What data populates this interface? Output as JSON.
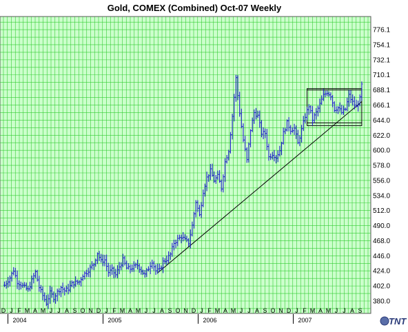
{
  "chart_data": {
    "type": "bar",
    "subtype": "ohlc-weekly",
    "title": "Gold, COMEX (Combined) Oct-07  Weekly",
    "xlabel": "",
    "ylabel": "",
    "ylim": [
      370,
      783
    ],
    "y_ticks": [
      "776.1",
      "754.1",
      "732.1",
      "710.1",
      "688.1",
      "666.1",
      "644.0",
      "622.0",
      "600.0",
      "578.0",
      "556.0",
      "534.0",
      "512.0",
      "490.0",
      "468.0",
      "446.0",
      "424.0",
      "402.0",
      "380.0"
    ],
    "x_month_labels": [
      "D",
      "J",
      "F",
      "M",
      "A",
      "M",
      "J",
      "J",
      "A",
      "S",
      "O",
      "N",
      "D",
      "J",
      "F",
      "M",
      "A",
      "M",
      "J",
      "J",
      "A",
      "S",
      "O",
      "N",
      "D",
      "J",
      "F",
      "M",
      "A",
      "M",
      "J",
      "J",
      "A",
      "S",
      "O",
      "N",
      "D",
      "J",
      "F",
      "M",
      "A",
      "M",
      "J",
      "J",
      "A",
      "S"
    ],
    "x_year_labels": [
      {
        "label": "2004",
        "month_index": 1
      },
      {
        "label": "2005",
        "month_index": 13
      },
      {
        "label": "2006",
        "month_index": 25
      },
      {
        "label": "2007",
        "month_index": 37
      }
    ],
    "grid": true,
    "colors": {
      "background": "#ccffcc",
      "grid": "#33cc33",
      "bars": "#1f1fcc",
      "trendline": "#000000",
      "logo": "#2a3a78"
    },
    "x_start": "2003-12-01",
    "series": [
      {
        "type": "ohlc",
        "points": [
          {
            "date": "2003-12-05",
            "close": 403
          },
          {
            "date": "2003-12-26",
            "close": 414
          },
          {
            "date": "2004-01-09",
            "close": 425
          },
          {
            "date": "2004-01-23",
            "close": 408
          },
          {
            "date": "2004-02-06",
            "close": 404
          },
          {
            "date": "2004-02-20",
            "close": 400
          },
          {
            "date": "2004-03-05",
            "close": 396
          },
          {
            "date": "2004-03-19",
            "close": 410
          },
          {
            "date": "2004-04-02",
            "close": 422
          },
          {
            "date": "2004-04-16",
            "close": 400
          },
          {
            "date": "2004-04-30",
            "close": 388
          },
          {
            "date": "2004-05-14",
            "close": 377
          },
          {
            "date": "2004-05-28",
            "close": 392
          },
          {
            "date": "2004-06-11",
            "close": 385
          },
          {
            "date": "2004-06-25",
            "close": 393
          },
          {
            "date": "2004-07-09",
            "close": 400
          },
          {
            "date": "2004-07-23",
            "close": 395
          },
          {
            "date": "2004-08-06",
            "close": 398
          },
          {
            "date": "2004-08-20",
            "close": 405
          },
          {
            "date": "2004-09-03",
            "close": 407
          },
          {
            "date": "2004-09-17",
            "close": 408
          },
          {
            "date": "2004-10-01",
            "close": 418
          },
          {
            "date": "2004-10-15",
            "close": 422
          },
          {
            "date": "2004-10-29",
            "close": 428
          },
          {
            "date": "2004-11-12",
            "close": 434
          },
          {
            "date": "2004-11-26",
            "close": 450
          },
          {
            "date": "2004-12-10",
            "close": 438
          },
          {
            "date": "2004-12-24",
            "close": 440
          },
          {
            "date": "2005-01-07",
            "close": 422
          },
          {
            "date": "2005-01-21",
            "close": 425
          },
          {
            "date": "2005-02-04",
            "close": 418
          },
          {
            "date": "2005-02-18",
            "close": 430
          },
          {
            "date": "2005-03-04",
            "close": 440
          },
          {
            "date": "2005-03-18",
            "close": 428
          },
          {
            "date": "2005-04-01",
            "close": 427
          },
          {
            "date": "2005-04-15",
            "close": 430
          },
          {
            "date": "2005-04-29",
            "close": 432
          },
          {
            "date": "2005-05-13",
            "close": 425
          },
          {
            "date": "2005-05-27",
            "close": 418
          },
          {
            "date": "2005-06-10",
            "close": 428
          },
          {
            "date": "2005-06-24",
            "close": 438
          },
          {
            "date": "2005-07-08",
            "close": 424
          },
          {
            "date": "2005-07-22",
            "close": 425
          },
          {
            "date": "2005-08-05",
            "close": 437
          },
          {
            "date": "2005-08-19",
            "close": 441
          },
          {
            "date": "2005-09-02",
            "close": 448
          },
          {
            "date": "2005-09-16",
            "close": 465
          },
          {
            "date": "2005-09-30",
            "close": 470
          },
          {
            "date": "2005-10-14",
            "close": 474
          },
          {
            "date": "2005-10-28",
            "close": 469
          },
          {
            "date": "2005-11-11",
            "close": 465
          },
          {
            "date": "2005-11-25",
            "close": 490
          },
          {
            "date": "2005-12-09",
            "close": 525
          },
          {
            "date": "2005-12-23",
            "close": 505
          },
          {
            "date": "2006-01-06",
            "close": 540
          },
          {
            "date": "2006-01-20",
            "close": 560
          },
          {
            "date": "2006-02-03",
            "close": 570
          },
          {
            "date": "2006-02-17",
            "close": 556
          },
          {
            "date": "2006-03-03",
            "close": 562
          },
          {
            "date": "2006-03-17",
            "close": 545
          },
          {
            "date": "2006-03-31",
            "close": 583
          },
          {
            "date": "2006-04-14",
            "close": 600
          },
          {
            "date": "2006-04-28",
            "close": 650
          },
          {
            "date": "2006-05-12",
            "close": 705
          },
          {
            "date": "2006-05-26",
            "close": 655
          },
          {
            "date": "2006-06-09",
            "close": 615
          },
          {
            "date": "2006-06-23",
            "close": 585
          },
          {
            "date": "2006-07-07",
            "close": 630
          },
          {
            "date": "2006-07-21",
            "close": 655
          },
          {
            "date": "2006-08-04",
            "close": 650
          },
          {
            "date": "2006-08-18",
            "close": 625
          },
          {
            "date": "2006-09-01",
            "close": 625
          },
          {
            "date": "2006-09-15",
            "close": 590
          },
          {
            "date": "2006-09-29",
            "close": 595
          },
          {
            "date": "2006-10-13",
            "close": 590
          },
          {
            "date": "2006-10-27",
            "close": 600
          },
          {
            "date": "2006-11-10",
            "close": 625
          },
          {
            "date": "2006-11-24",
            "close": 640
          },
          {
            "date": "2006-12-08",
            "close": 630
          },
          {
            "date": "2006-12-22",
            "close": 632
          },
          {
            "date": "2007-01-05",
            "close": 610
          },
          {
            "date": "2007-01-19",
            "close": 630
          },
          {
            "date": "2007-02-02",
            "close": 650
          },
          {
            "date": "2007-02-16",
            "close": 665
          },
          {
            "date": "2007-03-02",
            "close": 645
          },
          {
            "date": "2007-03-16",
            "close": 655
          },
          {
            "date": "2007-03-30",
            "close": 667
          },
          {
            "date": "2007-04-13",
            "close": 680
          },
          {
            "date": "2007-04-27",
            "close": 685
          },
          {
            "date": "2007-05-11",
            "close": 680
          },
          {
            "date": "2007-05-25",
            "close": 660
          },
          {
            "date": "2007-06-08",
            "close": 662
          },
          {
            "date": "2007-06-22",
            "close": 655
          },
          {
            "date": "2007-07-06",
            "close": 660
          },
          {
            "date": "2007-07-20",
            "close": 680
          },
          {
            "date": "2007-08-03",
            "close": 670
          },
          {
            "date": "2007-08-17",
            "close": 663
          },
          {
            "date": "2007-08-31",
            "close": 675
          },
          {
            "date": "2007-09-07",
            "close": 695
          }
        ]
      }
    ],
    "annotations": [
      {
        "type": "trendline",
        "from": {
          "date": "2005-07-15",
          "value": 421
        },
        "to": {
          "date": "2007-09-07",
          "value": 671
        }
      },
      {
        "type": "rectangle",
        "from": {
          "date": "2007-02-09",
          "value": 636
        },
        "to": {
          "date": "2007-09-07",
          "value": 690
        }
      },
      {
        "type": "hline",
        "from": {
          "date": "2007-02-09",
          "value": 640
        },
        "to": {
          "date": "2007-09-07",
          "value": 640
        }
      },
      {
        "type": "hline",
        "from": {
          "date": "2007-02-09",
          "value": 688
        },
        "to": {
          "date": "2007-09-07",
          "value": 688
        }
      }
    ],
    "logo": "TNT"
  }
}
